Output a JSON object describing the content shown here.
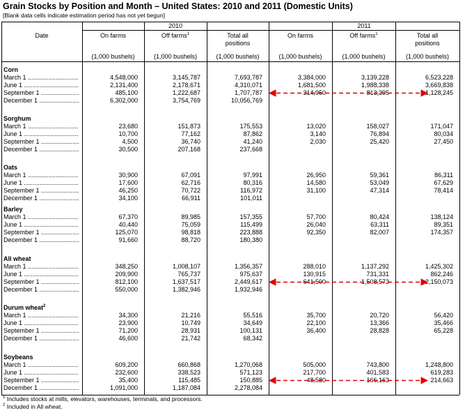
{
  "title": "Grain Stocks by Position and Month – United States: 2010 and 2011 (Domestic Units)",
  "subtitle": "[Blank data cells indicate estimation period has not yet begun]",
  "header": {
    "date": "Date",
    "years": [
      "2010",
      "2011"
    ],
    "columns": [
      {
        "text": "On farms"
      },
      {
        "text": "Off farms",
        "note": "1"
      },
      {
        "text": "Total all positions"
      }
    ],
    "units": "(1,000 bushels)"
  },
  "sections": [
    {
      "name": "Corn",
      "rows": [
        {
          "label": "March 1",
          "values": [
            "4,548,000",
            "3,145,787",
            "7,693,787",
            "3,384,000",
            "3,139,228",
            "6,523,228"
          ]
        },
        {
          "label": "June 1",
          "values": [
            "2,131,400",
            "2,178,671",
            "4,310,071",
            "1,681,500",
            "1,988,338",
            "3,669,838"
          ]
        },
        {
          "label": "September 1",
          "values": [
            "485,100",
            "1,222,687",
            "1,707,787",
            "314,950",
            "813,295",
            "1,128,245"
          ]
        },
        {
          "label": "December 1",
          "values": [
            "6,302,000",
            "3,754,769",
            "10,056,769",
            null,
            null,
            null
          ]
        }
      ]
    },
    {
      "name": "Sorghum",
      "rows": [
        {
          "label": "March 1",
          "values": [
            "23,680",
            "151,873",
            "175,553",
            "13,020",
            "158,027",
            "171,047"
          ]
        },
        {
          "label": "June 1",
          "values": [
            "10,700",
            "77,162",
            "87,862",
            "3,140",
            "76,894",
            "80,034"
          ]
        },
        {
          "label": "September 1",
          "values": [
            "4,500",
            "36,740",
            "41,240",
            "2,030",
            "25,420",
            "27,450"
          ]
        },
        {
          "label": "December 1",
          "values": [
            "30,500",
            "207,168",
            "237,668",
            null,
            null,
            null
          ]
        }
      ]
    },
    {
      "name": "Oats",
      "rows": [
        {
          "label": "March 1",
          "values": [
            "30,900",
            "67,091",
            "97,991",
            "26,950",
            "59,361",
            "86,311"
          ]
        },
        {
          "label": "June 1",
          "values": [
            "17,600",
            "62,716",
            "80,316",
            "14,580",
            "53,049",
            "67,629"
          ]
        },
        {
          "label": "September 1",
          "values": [
            "46,250",
            "70,722",
            "116,972",
            "31,100",
            "47,314",
            "78,414"
          ]
        },
        {
          "label": "December 1",
          "values": [
            "34,100",
            "66,911",
            "101,011",
            null,
            null,
            null
          ]
        }
      ]
    },
    {
      "name": "Barley",
      "rows": [
        {
          "label": "March 1",
          "values": [
            "67,370",
            "89,985",
            "157,355",
            "57,700",
            "80,424",
            "138,124"
          ]
        },
        {
          "label": "June 1",
          "values": [
            "40,440",
            "75,059",
            "115,499",
            "26,040",
            "63,311",
            "89,351"
          ]
        },
        {
          "label": "September 1",
          "values": [
            "125,070",
            "98,818",
            "223,888",
            "92,350",
            "82,007",
            "174,357"
          ]
        },
        {
          "label": "December 1",
          "values": [
            "91,660",
            "88,720",
            "180,380",
            null,
            null,
            null
          ]
        }
      ]
    },
    {
      "name": "All wheat",
      "rows": [
        {
          "label": "March 1",
          "values": [
            "348,250",
            "1,008,107",
            "1,356,357",
            "288,010",
            "1,137,292",
            "1,425,302"
          ]
        },
        {
          "label": "June 1",
          "values": [
            "209,900",
            "765,737",
            "975,637",
            "130,915",
            "731,331",
            "862,246"
          ]
        },
        {
          "label": "September 1",
          "values": [
            "812,100",
            "1,637,517",
            "2,449,617",
            "641,500",
            "1,508,573",
            "2,150,073"
          ]
        },
        {
          "label": "December 1",
          "values": [
            "550,000",
            "1,382,946",
            "1,932,946",
            null,
            null,
            null
          ]
        }
      ]
    },
    {
      "name": "Durum wheat",
      "note": "2",
      "rows": [
        {
          "label": "March 1",
          "values": [
            "34,300",
            "21,216",
            "55,516",
            "35,700",
            "20,720",
            "56,420"
          ]
        },
        {
          "label": "June 1",
          "values": [
            "23,900",
            "10,749",
            "34,649",
            "22,100",
            "13,366",
            "35,466"
          ]
        },
        {
          "label": "September 1",
          "values": [
            "71,200",
            "28,931",
            "100,131",
            "36,400",
            "28,828",
            "65,228"
          ]
        },
        {
          "label": "December 1",
          "values": [
            "46,600",
            "21,742",
            "68,342",
            null,
            null,
            null
          ]
        }
      ]
    },
    {
      "name": "Soybeans",
      "rows": [
        {
          "label": "March 1",
          "values": [
            "609,200",
            "660,868",
            "1,270,068",
            "505,000",
            "743,800",
            "1,248,800"
          ]
        },
        {
          "label": "June 1",
          "values": [
            "232,600",
            "338,523",
            "571,123",
            "217,700",
            "401,583",
            "619,283"
          ]
        },
        {
          "label": "September 1",
          "values": [
            "35,400",
            "115,485",
            "150,885",
            "48,580",
            "166,163",
            "214,663"
          ]
        },
        {
          "label": "December 1",
          "values": [
            "1,091,000",
            "1,187,084",
            "2,278,084",
            null,
            null,
            null
          ]
        }
      ]
    }
  ],
  "footnotes": [
    {
      "mark": "1",
      "text": "Includes stocks at mills, elevators, warehouses, terminals, and processors."
    },
    {
      "mark": "2",
      "text": "Included in All wheat."
    }
  ]
}
